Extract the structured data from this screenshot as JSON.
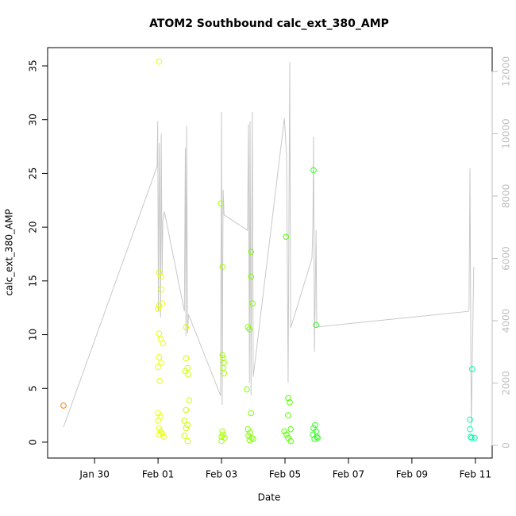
{
  "chart_data": {
    "type": "scatter",
    "title": "ATOM2 Southbound calc_ext_380_AMP",
    "x_label": "Date",
    "y_label": "calc_ext_380_AMP",
    "xlim": [
      -1.48,
      12.53
    ],
    "ylim": [
      -1.48,
      36.7
    ],
    "y2lim": [
      -408,
      12764
    ],
    "xticks": [
      {
        "value": 0,
        "label": "Jan 30"
      },
      {
        "value": 2,
        "label": "Feb 01"
      },
      {
        "value": 4,
        "label": "Feb 03"
      },
      {
        "value": 6,
        "label": "Feb 05"
      },
      {
        "value": 8,
        "label": "Feb 07"
      },
      {
        "value": 10,
        "label": "Feb 09"
      },
      {
        "value": 12,
        "label": "Feb 11"
      }
    ],
    "yticks": [
      0,
      5,
      10,
      15,
      20,
      25,
      30,
      35
    ],
    "y2ticks": [
      0,
      2000,
      4000,
      6000,
      8000,
      10000,
      12000
    ],
    "y2color": "#bebebe",
    "series": [
      {
        "type": "line",
        "axis": "y2",
        "color": "#c8c8c8",
        "x": [
          -0.98,
          1.97,
          1.99,
          2.01,
          2.04,
          2.08,
          2.1,
          2.13,
          2.15,
          2.2,
          2.83,
          2.86,
          2.88,
          2.9,
          2.93,
          2.96,
          3.97,
          4.0,
          4.02,
          4.05,
          4.08,
          4.82,
          4.85,
          4.88,
          4.9,
          4.93,
          4.97,
          5.0,
          5.98,
          6.05,
          6.1,
          6.15,
          6.18,
          6.85,
          6.88,
          6.9,
          6.93,
          6.98,
          7.0,
          11.78,
          11.8,
          11.83,
          11.87,
          11.95
        ],
        "values": [
          586,
          8950,
          10400,
          4300,
          9700,
          4100,
          10000,
          5500,
          7200,
          7500,
          4300,
          9550,
          3500,
          10250,
          3600,
          4200,
          1600,
          10700,
          1300,
          8200,
          7400,
          6900,
          10300,
          2000,
          10400,
          1600,
          10700,
          2200,
          10500,
          9300,
          2000,
          12300,
          3770,
          6000,
          7000,
          9900,
          3000,
          6900,
          3800,
          4300,
          4400,
          8890,
          600,
          5730
        ]
      },
      {
        "type": "scatter",
        "color": "#ff8000",
        "x": [
          -0.98
        ],
        "values": [
          3.4
        ]
      },
      {
        "type": "scatter",
        "color": "#e6ff00",
        "x": [
          2.03,
          2.03,
          2.1,
          2.1,
          2.03,
          2.13,
          2.0,
          2.03,
          2.08,
          2.15,
          2.03,
          2.1,
          2.0,
          2.05,
          2.0,
          2.08,
          2.0,
          2.03,
          2.08,
          2.13,
          2.03,
          2.18
        ],
        "values": [
          35.4,
          15.8,
          15.4,
          14.2,
          12.7,
          12.9,
          12.4,
          10.1,
          9.6,
          9.2,
          7.9,
          7.4,
          7.0,
          5.7,
          2.7,
          2.4,
          2.0,
          1.3,
          1.0,
          0.8,
          0.7,
          0.5
        ]
      },
      {
        "type": "scatter",
        "color": "#ccff00",
        "x": [
          2.88,
          2.88,
          2.93,
          2.85,
          2.95,
          2.98,
          2.88,
          2.83,
          2.93,
          2.88,
          2.83,
          2.93
        ],
        "values": [
          10.7,
          7.8,
          6.9,
          6.6,
          6.3,
          3.9,
          3.0,
          2.0,
          1.6,
          1.3,
          0.6,
          0.1
        ]
      },
      {
        "type": "scatter",
        "color": "#a6ff00",
        "x": [
          3.98,
          4.03,
          4.03,
          4.05,
          4.08,
          4.05,
          4.08,
          4.03,
          4.05,
          4.0,
          4.1,
          4.0
        ],
        "values": [
          22.2,
          16.3,
          8.1,
          7.8,
          7.4,
          6.9,
          6.4,
          1.0,
          0.7,
          0.5,
          0.4,
          0.1
        ]
      },
      {
        "type": "scatter",
        "color": "#80ff00",
        "x": [
          4.8,
          4.83,
          4.88,
          4.93,
          4.93,
          4.98,
          4.93,
          4.83,
          4.9,
          4.85,
          4.95,
          5.0,
          4.88
        ],
        "values": [
          4.9,
          10.7,
          10.5,
          17.7,
          15.4,
          12.9,
          2.7,
          1.2,
          0.9,
          0.6,
          0.4,
          0.3,
          0.2
        ]
      },
      {
        "type": "scatter",
        "color": "#55ff00",
        "x": [
          6.03,
          6.1,
          6.15,
          6.1,
          5.98,
          6.05,
          6.18,
          6.1,
          6.18
        ],
        "values": [
          19.1,
          4.1,
          3.7,
          2.5,
          1.0,
          0.7,
          1.2,
          0.4,
          0.1
        ]
      },
      {
        "type": "scatter",
        "color": "#33ff22",
        "x": [
          6.9,
          6.98,
          6.95,
          6.9,
          6.98,
          6.88,
          7.0,
          6.93,
          7.03
        ],
        "values": [
          25.3,
          10.9,
          1.6,
          1.3,
          1.0,
          0.7,
          0.5,
          0.3,
          0.4
        ]
      },
      {
        "type": "scatter",
        "color": "#00ffaa",
        "x": [
          11.83,
          11.83,
          11.9,
          11.88,
          11.98,
          11.85
        ],
        "values": [
          2.1,
          1.2,
          6.8,
          0.4,
          0.4,
          0.5
        ]
      }
    ]
  }
}
